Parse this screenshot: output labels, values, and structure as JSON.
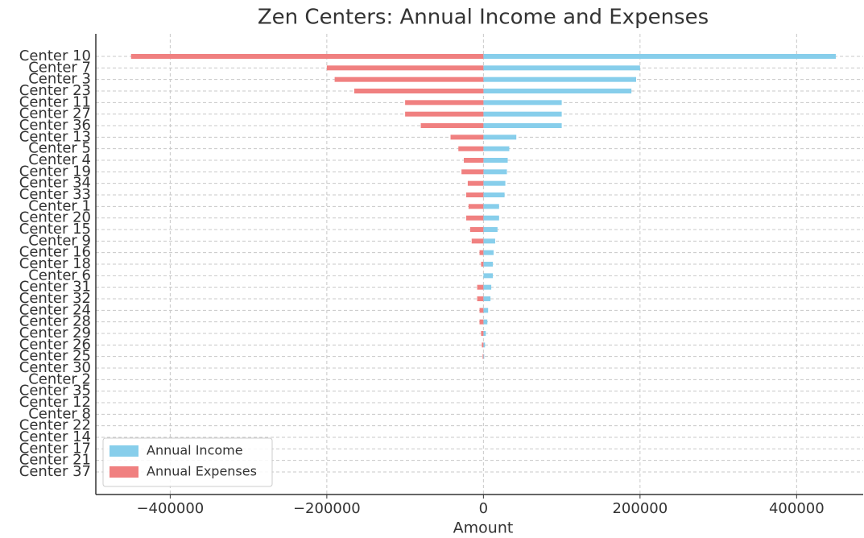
{
  "chart_data": {
    "type": "hbar_diverging",
    "title": "Zen Centers: Annual Income and Expenses",
    "x_label": "Amount",
    "categories": [
      "Center 10",
      "Center 7",
      "Center 3",
      "Center 23",
      "Center 11",
      "Center 27",
      "Center 36",
      "Center 13",
      "Center 5",
      "Center 4",
      "Center 19",
      "Center 34",
      "Center 33",
      "Center 1",
      "Center 20",
      "Center 15",
      "Center 9",
      "Center 16",
      "Center 18",
      "Center 6",
      "Center 31",
      "Center 32",
      "Center 24",
      "Center 28",
      "Center 29",
      "Center 26",
      "Center 25",
      "Center 30",
      "Center 2",
      "Center 35",
      "Center 12",
      "Center 8",
      "Center 22",
      "Center 14",
      "Center 17",
      "Center 21",
      "Center 37"
    ],
    "series": [
      {
        "name": "Annual Income",
        "color": "#87ceeb",
        "values": [
          450000,
          200000,
          195000,
          189000,
          100000,
          100000,
          100000,
          42000,
          33000,
          31000,
          30000,
          28000,
          27000,
          20000,
          20000,
          18000,
          15000,
          13000,
          12000,
          12000,
          10000,
          9000,
          6000,
          5000,
          3000,
          2000,
          1000,
          0,
          0,
          0,
          0,
          0,
          0,
          0,
          0,
          0,
          0
        ]
      },
      {
        "name": "Annual Expenses",
        "color": "#f08080",
        "values": [
          -450000,
          -200000,
          -190000,
          -165000,
          -100000,
          -100000,
          -80000,
          -42000,
          -32000,
          -25000,
          -28000,
          -20000,
          -22000,
          -19000,
          -22000,
          -17000,
          -15000,
          -5000,
          -3000,
          0,
          -8000,
          -8000,
          -5000,
          -5000,
          -3000,
          -2000,
          -1000,
          0,
          0,
          0,
          0,
          0,
          0,
          0,
          0,
          0,
          0
        ]
      }
    ],
    "xlim": [
      -495000,
      485000
    ],
    "xticks": [
      {
        "value": -400000,
        "label": "−400000"
      },
      {
        "value": -200000,
        "label": "−200000"
      },
      0,
      200000,
      400000
    ],
    "grid": true,
    "legend": "lower left"
  }
}
